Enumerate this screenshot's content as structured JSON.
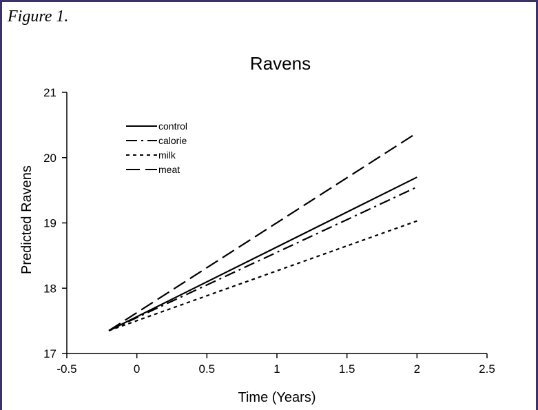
{
  "caption": "Figure 1.",
  "chart_data": {
    "type": "line",
    "title": "Ravens",
    "xlabel": "Time (Years)",
    "ylabel": "Predicted Ravens",
    "xlim": [
      -0.5,
      2.5
    ],
    "ylim": [
      17,
      21
    ],
    "xticks": [
      -0.5,
      0,
      0.5,
      1,
      1.5,
      2,
      2.5
    ],
    "xtick_labels": [
      "-0.5",
      "0",
      "0.5",
      "1",
      "1.5",
      "2",
      "2.5"
    ],
    "yticks": [
      17,
      18,
      19,
      20,
      21
    ],
    "ytick_labels": [
      "17",
      "18",
      "19",
      "20",
      "21"
    ],
    "grid": false,
    "legend_position": "top-left",
    "series": [
      {
        "name": "control",
        "dash": "solid",
        "x": [
          -0.2,
          2
        ],
        "y": [
          17.35,
          19.7
        ]
      },
      {
        "name": "calorie",
        "dash": "dashdot",
        "x": [
          -0.2,
          2
        ],
        "y": [
          17.35,
          19.55
        ]
      },
      {
        "name": "milk",
        "dash": "dotted",
        "x": [
          -0.2,
          2
        ],
        "y": [
          17.35,
          19.03
        ]
      },
      {
        "name": "meat",
        "dash": "longdash",
        "x": [
          -0.2,
          2
        ],
        "y": [
          17.35,
          20.38
        ]
      }
    ]
  }
}
